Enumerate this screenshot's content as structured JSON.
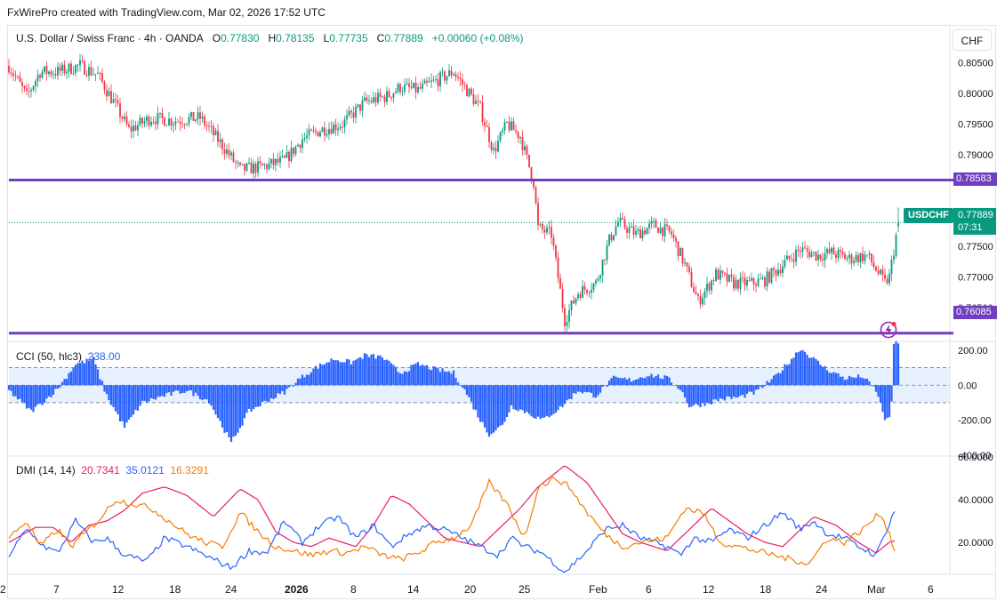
{
  "attribution": "FxWirePro created with TradingView.com, Mar 02, 2026 17:52 UTC",
  "currency_button": "CHF",
  "symbol_label": "USDCHF",
  "current_price": "0.77889",
  "countdown": "07:31",
  "colors": {
    "up": "#089981",
    "down": "#f23645",
    "level": "#6f3fbf",
    "cci": "#2962ff",
    "cci_band": "#dbeafe",
    "dmi_adx": "#e91e63",
    "dmi_plus": "#2962ff",
    "dmi_minus": "#f57c00"
  },
  "icons": [
    "lightning-icon"
  ],
  "main_legend": {
    "title": "U.S. Dollar / Swiss Franc · 4h · OANDA",
    "o_key": "O",
    "o_val": "0.77830",
    "h_key": "H",
    "h_val": "0.78135",
    "l_key": "L",
    "l_val": "0.77735",
    "c_key": "C",
    "c_val": "0.77889",
    "change": "+0.00060 (+0.08%)"
  },
  "cci_legend": {
    "name": "CCI (50, hlc3)",
    "value": "238.00"
  },
  "dmi_legend": {
    "name": "DMI (14, 14)",
    "adx": "20.7341",
    "plus_di": "35.0121",
    "minus_di": "16.3291"
  },
  "chart_data": [
    {
      "type": "candlestick",
      "title": "U.S. Dollar / Swiss Franc · 4h · OANDA",
      "price_range": [
        0.7595,
        0.8068
      ],
      "y_ticks": [
        "0.80500",
        "0.80000",
        "0.79500",
        "0.79000",
        "0.78000",
        "0.77500",
        "0.77000",
        "0.76500"
      ],
      "y_tick_values": [
        0.805,
        0.8,
        0.795,
        0.79,
        0.78,
        0.775,
        0.77,
        0.765
      ],
      "x_ticks": [
        "2",
        "7",
        "12",
        "18",
        "24",
        "2026",
        "8",
        "14",
        "20",
        "25",
        "Feb",
        "6",
        "12",
        "18",
        "24",
        "Mar",
        "6"
      ],
      "horizontal_levels": [
        {
          "label": "0.78583",
          "value": 0.78583
        },
        {
          "label": "0.76085",
          "value": 0.76085
        }
      ],
      "anchors": [
        [
          0,
          0.8045
        ],
        [
          20,
          0.7995
        ],
        [
          35,
          0.8035
        ],
        [
          55,
          0.8035
        ],
        [
          80,
          0.8045
        ],
        [
          100,
          0.803
        ],
        [
          120,
          0.798
        ],
        [
          135,
          0.794
        ],
        [
          160,
          0.796
        ],
        [
          185,
          0.7955
        ],
        [
          215,
          0.796
        ],
        [
          240,
          0.7915
        ],
        [
          260,
          0.7875
        ],
        [
          285,
          0.788
        ],
        [
          310,
          0.789
        ],
        [
          330,
          0.7925
        ],
        [
          350,
          0.794
        ],
        [
          375,
          0.795
        ],
        [
          400,
          0.7985
        ],
        [
          425,
          0.7995
        ],
        [
          440,
          0.801
        ],
        [
          460,
          0.8005
        ],
        [
          480,
          0.802
        ],
        [
          500,
          0.8035
        ],
        [
          515,
          0.8005
        ],
        [
          530,
          0.7975
        ],
        [
          545,
          0.7905
        ],
        [
          560,
          0.795
        ],
        [
          575,
          0.793
        ],
        [
          590,
          0.7855
        ],
        [
          595,
          0.778
        ],
        [
          610,
          0.777
        ],
        [
          625,
          0.763
        ],
        [
          640,
          0.7675
        ],
        [
          660,
          0.769
        ],
        [
          675,
          0.776
        ],
        [
          685,
          0.779
        ],
        [
          705,
          0.777
        ],
        [
          725,
          0.7785
        ],
        [
          745,
          0.777
        ],
        [
          760,
          0.772
        ],
        [
          775,
          0.766
        ],
        [
          795,
          0.7705
        ],
        [
          815,
          0.769
        ],
        [
          835,
          0.769
        ],
        [
          850,
          0.7695
        ],
        [
          870,
          0.772
        ],
        [
          890,
          0.7745
        ],
        [
          910,
          0.7735
        ],
        [
          925,
          0.774
        ],
        [
          945,
          0.773
        ],
        [
          965,
          0.7735
        ],
        [
          985,
          0.769
        ],
        [
          990,
          0.77
        ],
        [
          1000,
          0.7789
        ]
      ],
      "last": {
        "open": 0.7783,
        "high": 0.78135,
        "low": 0.77735,
        "close": 0.77889
      }
    },
    {
      "type": "histogram",
      "title": "CCI (50, hlc3)",
      "range": [
        -400,
        240
      ],
      "y_ticks": [
        "200.00",
        "0.00",
        "-200.00",
        "-400.00"
      ],
      "y_tick_values": [
        200,
        0,
        -200,
        -400
      ],
      "band": [
        -100,
        100
      ],
      "anchors": [
        [
          0,
          -30
        ],
        [
          25,
          -150
        ],
        [
          40,
          -90
        ],
        [
          55,
          -20
        ],
        [
          75,
          120
        ],
        [
          95,
          150
        ],
        [
          110,
          -60
        ],
        [
          130,
          -240
        ],
        [
          150,
          -100
        ],
        [
          175,
          -60
        ],
        [
          200,
          -30
        ],
        [
          225,
          -90
        ],
        [
          250,
          -330
        ],
        [
          270,
          -150
        ],
        [
          290,
          -90
        ],
        [
          310,
          -40
        ],
        [
          325,
          30
        ],
        [
          345,
          100
        ],
        [
          365,
          150
        ],
        [
          385,
          130
        ],
        [
          400,
          170
        ],
        [
          420,
          160
        ],
        [
          440,
          70
        ],
        [
          460,
          120
        ],
        [
          480,
          90
        ],
        [
          500,
          70
        ],
        [
          515,
          -50
        ],
        [
          530,
          -200
        ],
        [
          540,
          -280
        ],
        [
          555,
          -230
        ],
        [
          565,
          -120
        ],
        [
          580,
          -150
        ],
        [
          600,
          -200
        ],
        [
          620,
          -130
        ],
        [
          640,
          -30
        ],
        [
          660,
          -60
        ],
        [
          680,
          40
        ],
        [
          700,
          30
        ],
        [
          720,
          60
        ],
        [
          740,
          40
        ],
        [
          755,
          -20
        ],
        [
          765,
          -120
        ],
        [
          780,
          -110
        ],
        [
          800,
          -80
        ],
        [
          820,
          -70
        ],
        [
          840,
          -40
        ],
        [
          860,
          40
        ],
        [
          875,
          120
        ],
        [
          890,
          210
        ],
        [
          905,
          150
        ],
        [
          920,
          90
        ],
        [
          940,
          40
        ],
        [
          960,
          50
        ],
        [
          975,
          -30
        ],
        [
          985,
          -190
        ],
        [
          992,
          -200
        ],
        [
          994,
          238
        ]
      ]
    },
    {
      "type": "line",
      "title": "DMI (14, 14)",
      "range": [
        5,
        60
      ],
      "y_ticks": [
        "60.0000",
        "40.0000",
        "20.0000"
      ],
      "y_tick_values": [
        60,
        40,
        20
      ],
      "series": [
        {
          "name": "ADX",
          "values": [
            [
              0,
              20
            ],
            [
              30,
              27
            ],
            [
              50,
              27
            ],
            [
              70,
              20
            ],
            [
              90,
              28
            ],
            [
              110,
              30
            ],
            [
              130,
              35
            ],
            [
              150,
              43
            ],
            [
              175,
              46
            ],
            [
              200,
              42
            ],
            [
              230,
              32
            ],
            [
              260,
              45
            ],
            [
              280,
              40
            ],
            [
              300,
              25
            ],
            [
              320,
              20
            ],
            [
              340,
              18
            ],
            [
              360,
              22
            ],
            [
              390,
              18
            ],
            [
              410,
              28
            ],
            [
              430,
              42
            ],
            [
              450,
              38
            ],
            [
              470,
              30
            ],
            [
              490,
              22
            ],
            [
              510,
              20
            ],
            [
              530,
              18
            ],
            [
              550,
              26
            ],
            [
              575,
              36
            ],
            [
              595,
              46
            ],
            [
              625,
              56
            ],
            [
              650,
              48
            ],
            [
              670,
              36
            ],
            [
              690,
              24
            ],
            [
              710,
              20
            ],
            [
              740,
              16
            ],
            [
              765,
              26
            ],
            [
              790,
              36
            ],
            [
              810,
              30
            ],
            [
              830,
              24
            ],
            [
              850,
              20
            ],
            [
              870,
              18
            ],
            [
              890,
              26
            ],
            [
              905,
              32
            ],
            [
              930,
              28
            ],
            [
              955,
              20
            ],
            [
              975,
              15
            ],
            [
              990,
              20
            ],
            [
              996,
              20.7
            ]
          ]
        },
        {
          "name": "+DI",
          "values": [
            [
              0,
              14
            ],
            [
              20,
              26
            ],
            [
              40,
              18
            ],
            [
              55,
              15
            ],
            [
              75,
              30
            ],
            [
              95,
              20
            ],
            [
              110,
              22
            ],
            [
              130,
              14
            ],
            [
              155,
              11
            ],
            [
              175,
              22
            ],
            [
              200,
              18
            ],
            [
              230,
              12
            ],
            [
              250,
              8
            ],
            [
              270,
              16
            ],
            [
              290,
              15
            ],
            [
              310,
              30
            ],
            [
              330,
              20
            ],
            [
              350,
              28
            ],
            [
              370,
              32
            ],
            [
              390,
              22
            ],
            [
              410,
              28
            ],
            [
              430,
              18
            ],
            [
              450,
              24
            ],
            [
              470,
              28
            ],
            [
              490,
              26
            ],
            [
              510,
              22
            ],
            [
              530,
              18
            ],
            [
              550,
              14
            ],
            [
              565,
              22
            ],
            [
              580,
              18
            ],
            [
              600,
              15
            ],
            [
              625,
              6
            ],
            [
              650,
              16
            ],
            [
              670,
              26
            ],
            [
              690,
              28
            ],
            [
              710,
              22
            ],
            [
              740,
              18
            ],
            [
              755,
              14
            ],
            [
              770,
              22
            ],
            [
              790,
              20
            ],
            [
              810,
              26
            ],
            [
              830,
              22
            ],
            [
              850,
              28
            ],
            [
              870,
              34
            ],
            [
              890,
              26
            ],
            [
              905,
              30
            ],
            [
              920,
              24
            ],
            [
              940,
              22
            ],
            [
              955,
              18
            ],
            [
              975,
              14
            ],
            [
              985,
              24
            ],
            [
              996,
              35
            ]
          ]
        },
        {
          "name": "-DI",
          "values": [
            [
              0,
              22
            ],
            [
              20,
              30
            ],
            [
              35,
              18
            ],
            [
              55,
              26
            ],
            [
              70,
              18
            ],
            [
              85,
              24
            ],
            [
              100,
              30
            ],
            [
              120,
              40
            ],
            [
              140,
              38
            ],
            [
              160,
              36
            ],
            [
              180,
              30
            ],
            [
              200,
              24
            ],
            [
              220,
              20
            ],
            [
              240,
              18
            ],
            [
              260,
              34
            ],
            [
              280,
              25
            ],
            [
              300,
              18
            ],
            [
              320,
              16
            ],
            [
              340,
              14
            ],
            [
              360,
              16
            ],
            [
              380,
              15
            ],
            [
              400,
              18
            ],
            [
              420,
              14
            ],
            [
              440,
              12
            ],
            [
              460,
              15
            ],
            [
              480,
              20
            ],
            [
              500,
              22
            ],
            [
              520,
              28
            ],
            [
              540,
              48
            ],
            [
              560,
              38
            ],
            [
              580,
              22
            ],
            [
              595,
              46
            ],
            [
              615,
              50
            ],
            [
              630,
              46
            ],
            [
              650,
              34
            ],
            [
              670,
              24
            ],
            [
              690,
              18
            ],
            [
              710,
              20
            ],
            [
              740,
              22
            ],
            [
              760,
              36
            ],
            [
              780,
              34
            ],
            [
              800,
              20
            ],
            [
              820,
              18
            ],
            [
              840,
              16
            ],
            [
              860,
              14
            ],
            [
              880,
              12
            ],
            [
              900,
              10
            ],
            [
              920,
              22
            ],
            [
              940,
              20
            ],
            [
              960,
              26
            ],
            [
              980,
              34
            ],
            [
              990,
              24
            ],
            [
              996,
              16.3
            ]
          ]
        }
      ]
    }
  ]
}
